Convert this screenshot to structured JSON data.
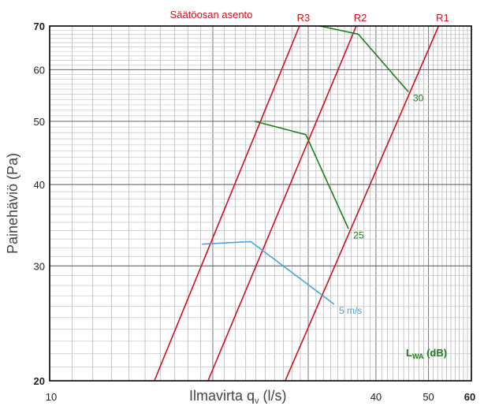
{
  "chart_data": {
    "type": "line",
    "title": "Säätöosan asento",
    "xlabel": "Ilmavirta q",
    "xlabel_sub": "v",
    "xlabel_unit": " (l/s)",
    "ylabel": "Painehäviö (Pa)",
    "x_scale": "log",
    "y_scale": "log",
    "xlim": [
      10,
      60
    ],
    "ylim": [
      20,
      70
    ],
    "grid": true,
    "x_tick_labels": [
      {
        "value": 10,
        "label": "10",
        "bold": false
      },
      {
        "value": 40,
        "label": "40",
        "bold": false
      },
      {
        "value": 50,
        "label": "50",
        "bold": false
      },
      {
        "value": 60,
        "label": "60",
        "bold": true
      }
    ],
    "y_tick_labels": [
      {
        "value": 20,
        "label": "20",
        "bold": true
      },
      {
        "value": 30,
        "label": "30",
        "bold": false
      },
      {
        "value": 40,
        "label": "40",
        "bold": false
      },
      {
        "value": 50,
        "label": "50",
        "bold": false
      },
      {
        "value": 60,
        "label": "60",
        "bold": false
      },
      {
        "value": 70,
        "label": "70",
        "bold": true
      }
    ],
    "position_lines": [
      {
        "name": "R1",
        "color": "#d0101c",
        "points": [
          [
            27.2,
            20
          ],
          [
            52.2,
            70
          ]
        ]
      },
      {
        "name": "R2",
        "color": "#d0101c",
        "points": [
          [
            19.6,
            20
          ],
          [
            36.8,
            70
          ]
        ]
      },
      {
        "name": "R3",
        "color": "#d0101c",
        "points": [
          [
            15.6,
            20
          ],
          [
            28.9,
            70
          ]
        ]
      }
    ],
    "sound_curves": [
      {
        "name": "30",
        "color": "#1a7f1a",
        "points": [
          [
            31.5,
            70
          ],
          [
            37.1,
            68
          ],
          [
            45.9,
            55.5
          ]
        ]
      },
      {
        "name": "25",
        "color": "#1a7f1a",
        "points": [
          [
            23.9,
            50
          ],
          [
            29.7,
            47.7
          ],
          [
            35.6,
            34.2
          ]
        ]
      },
      {
        "name": "5 m/s",
        "color": "#4aa3dd",
        "points": [
          [
            19.1,
            32.4
          ],
          [
            23.5,
            32.7
          ],
          [
            33.5,
            26.2
          ]
        ]
      }
    ],
    "legend_label": "L",
    "legend_sub": "WA",
    "legend_unit": " (dB)",
    "legend_color": "#1a7f1a"
  }
}
